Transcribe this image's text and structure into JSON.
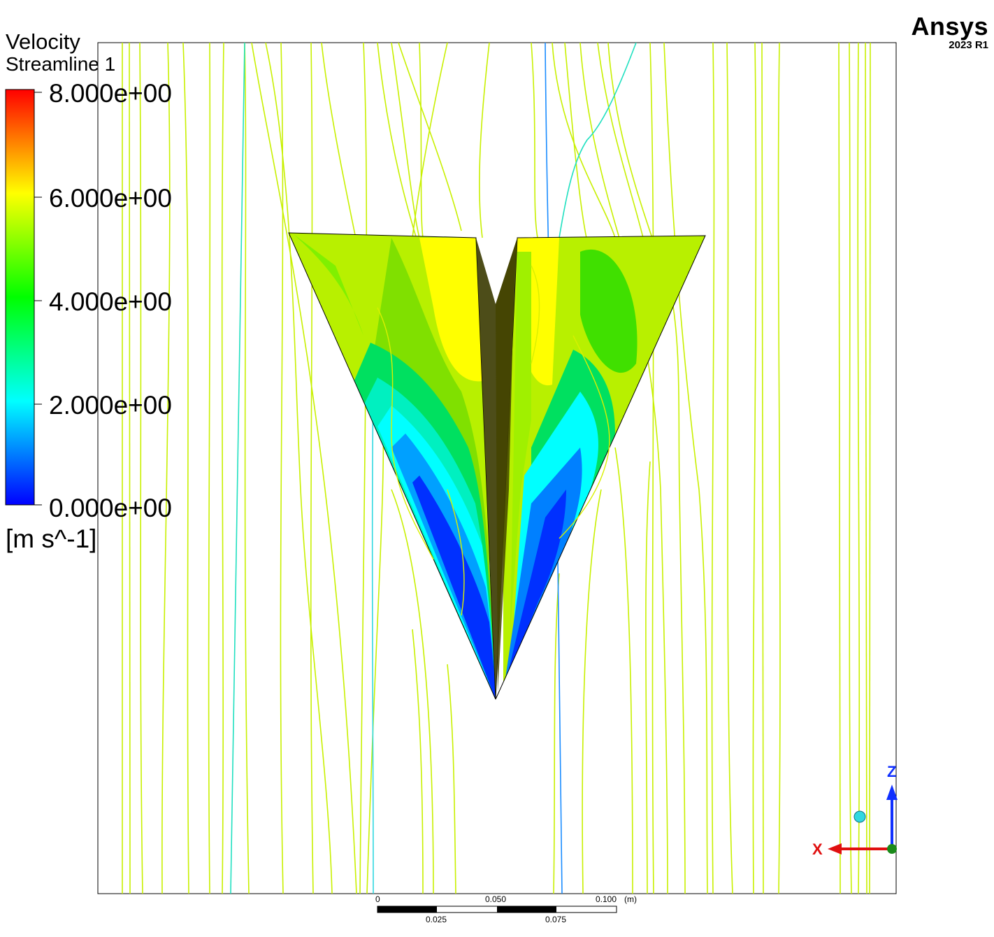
{
  "legend": {
    "variable": "Velocity",
    "object": "Streamline 1",
    "units": "[m s^-1]",
    "ticks": [
      "8.000e+00",
      "6.000e+00",
      "4.000e+00",
      "2.000e+00",
      "0.000e+00"
    ],
    "range": [
      0,
      8
    ],
    "colormap": [
      "#ff0000",
      "#ff8000",
      "#ffff00",
      "#80ff00",
      "#00ff00",
      "#00ff80",
      "#00ffff",
      "#0080ff",
      "#0000ff"
    ]
  },
  "brand": {
    "name": "Ansys",
    "version": "2023 R1"
  },
  "scale_bar": {
    "top_labels": [
      "0",
      "0.050",
      "0.100",
      "(m)"
    ],
    "bottom_labels": [
      "0.025",
      "0.075"
    ]
  },
  "triad": {
    "vertical_axis": "Z",
    "horizontal_axis": "X"
  },
  "colors": {
    "streamline_main": "#c8f000",
    "streamline_cyan": "#20e0c0",
    "streamline_blue": "#1a8cff",
    "axis_z": "#1030ff",
    "axis_x": "#e01010"
  }
}
